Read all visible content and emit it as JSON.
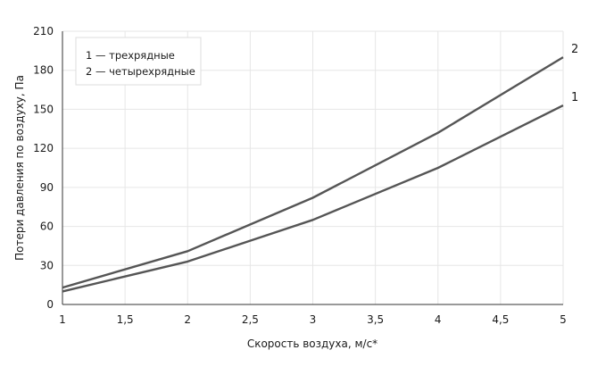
{
  "chart_data": {
    "type": "line",
    "xlabel": "Скорость воздуха, м/с*",
    "ylabel": "Потери давления по воздуху, Па",
    "xlim": [
      1,
      5
    ],
    "ylim": [
      0,
      210
    ],
    "x_ticks": [
      1,
      1.5,
      2,
      2.5,
      3,
      3.5,
      4,
      4.5,
      5
    ],
    "x_tick_labels": [
      "1",
      "1,5",
      "2",
      "2,5",
      "3",
      "3,5",
      "4",
      "4,5",
      "5"
    ],
    "y_ticks": [
      0,
      30,
      60,
      90,
      120,
      150,
      180,
      210
    ],
    "y_tick_labels": [
      "0",
      "30",
      "60",
      "90",
      "120",
      "150",
      "180",
      "210"
    ],
    "grid": true,
    "legend_position": "top-left",
    "legend": [
      "1 — трехрядные",
      "2 — четырехрядные"
    ],
    "series": [
      {
        "name": "1",
        "x": [
          1,
          2,
          3,
          4,
          5
        ],
        "values": [
          10,
          33,
          65,
          105,
          153
        ]
      },
      {
        "name": "2",
        "x": [
          1,
          2,
          3,
          4,
          5
        ],
        "values": [
          13,
          41,
          82,
          132,
          190
        ]
      }
    ],
    "colors": {
      "line": "#555555",
      "grid": "#e6e6e6",
      "axis": "#333333"
    }
  }
}
